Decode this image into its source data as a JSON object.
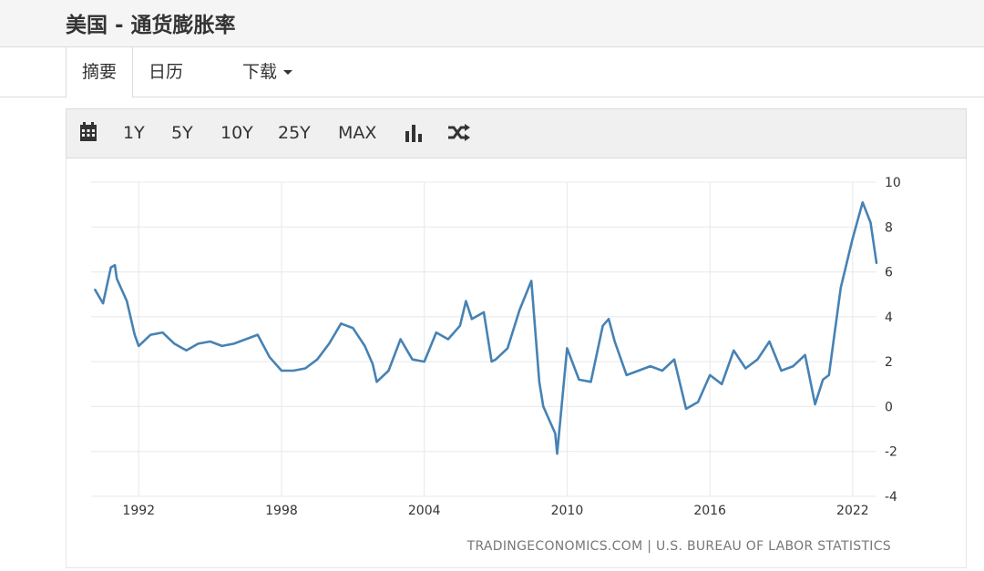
{
  "header": {
    "title": "美国 - 通货膨胀率"
  },
  "tabs": [
    {
      "label": "摘要"
    },
    {
      "label": "日历"
    },
    {
      "label": "下载"
    }
  ],
  "toolbar": {
    "icons": [
      "calendar-icon",
      "bar-chart-icon",
      "shuffle-icon"
    ],
    "ranges": [
      "1Y",
      "5Y",
      "10Y",
      "25Y",
      "MAX"
    ]
  },
  "colors": {
    "line": "#4682b4",
    "grid": "#e8e8e8"
  },
  "source": "TRADINGECONOMICS.COM | U.S. BUREAU OF LABOR STATISTICS",
  "chart_data": {
    "type": "line",
    "title": "",
    "xlabel": "",
    "ylabel": "",
    "ylim": [
      -4,
      10
    ],
    "xlim": [
      1990.0,
      2023.0
    ],
    "grid": true,
    "y_axis_side": "right",
    "x_ticks": [
      "1992",
      "1998",
      "2004",
      "2010",
      "2016",
      "2022"
    ],
    "y_ticks": [
      "10",
      "8",
      "6",
      "4",
      "2",
      "0",
      "-2",
      "-4"
    ],
    "series": [
      {
        "name": "",
        "x": [
          1990.17,
          1990.5,
          1990.83,
          1991.0,
          1991.08,
          1991.5,
          1991.83,
          1992.0,
          1992.5,
          1993.0,
          1993.5,
          1994.0,
          1994.5,
          1995.0,
          1995.5,
          1996.0,
          1996.5,
          1997.0,
          1997.5,
          1998.0,
          1998.5,
          1999.0,
          1999.5,
          2000.0,
          2000.5,
          2001.0,
          2001.5,
          2001.83,
          2002.0,
          2002.5,
          2003.0,
          2003.5,
          2004.0,
          2004.5,
          2005.0,
          2005.5,
          2005.75,
          2006.0,
          2006.5,
          2006.83,
          2007.0,
          2007.5,
          2008.0,
          2008.5,
          2008.83,
          2009.0,
          2009.5,
          2009.58,
          2010.0,
          2010.5,
          2011.0,
          2011.5,
          2011.75,
          2012.0,
          2012.5,
          2013.0,
          2013.5,
          2014.0,
          2014.5,
          2015.0,
          2015.5,
          2016.0,
          2016.5,
          2017.0,
          2017.5,
          2018.0,
          2018.5,
          2019.0,
          2019.5,
          2020.0,
          2020.42,
          2020.75,
          2021.0,
          2021.5,
          2022.0,
          2022.42,
          2022.75,
          2023.0
        ],
        "values": [
          5.2,
          4.6,
          6.2,
          6.3,
          5.7,
          4.7,
          3.2,
          2.7,
          3.2,
          3.3,
          2.8,
          2.5,
          2.8,
          2.9,
          2.7,
          2.8,
          3.0,
          3.2,
          2.2,
          1.6,
          1.6,
          1.7,
          2.1,
          2.8,
          3.7,
          3.5,
          2.7,
          1.9,
          1.1,
          1.6,
          3.0,
          2.1,
          2.0,
          3.3,
          3.0,
          3.6,
          4.7,
          3.9,
          4.2,
          2.0,
          2.1,
          2.6,
          4.3,
          5.6,
          1.1,
          0.0,
          -1.2,
          -2.1,
          2.6,
          1.2,
          1.1,
          3.6,
          3.9,
          2.9,
          1.4,
          1.6,
          1.8,
          1.6,
          2.1,
          -0.1,
          0.2,
          1.4,
          1.0,
          2.5,
          1.7,
          2.1,
          2.9,
          1.6,
          1.8,
          2.3,
          0.1,
          1.2,
          1.4,
          5.3,
          7.5,
          9.1,
          8.2,
          6.4
        ]
      }
    ]
  }
}
